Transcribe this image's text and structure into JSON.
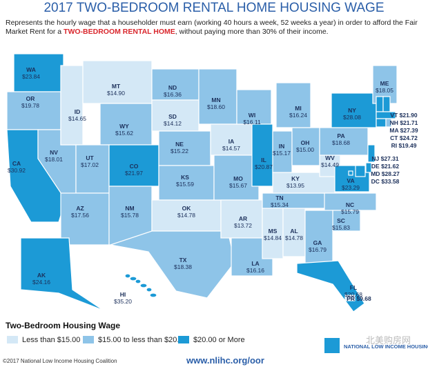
{
  "header": {
    "title": "2017 TWO-BEDROOM RENTAL HOME HOUSING WAGE",
    "subtitle": {
      "before": "Represents the hourly wage that a householder must earn (working 40 hours a week, 52 weeks a year) in order to afford the Fair Market Rent for a ",
      "highlight": "TWO-BEDROOM RENTAL HOME",
      "after": ", without paying more than 30% of their income."
    }
  },
  "legend": {
    "title": "Two-Bedroom Housing Wage",
    "items": [
      {
        "label": "Less than $15.00",
        "color": "#d4e8f6"
      },
      {
        "label": "$15.00 to less than $20.00",
        "color": "#8ec4e8"
      },
      {
        "label": "$20.00 or More",
        "color": "#1c9ad6"
      }
    ]
  },
  "states": [
    {
      "abbr": "WA",
      "wage": "$23.84",
      "tier": 2
    },
    {
      "abbr": "OR",
      "wage": "$19.78",
      "tier": 1
    },
    {
      "abbr": "CA",
      "wage": "$30.92",
      "tier": 2
    },
    {
      "abbr": "NV",
      "wage": "$18.01",
      "tier": 1
    },
    {
      "abbr": "ID",
      "wage": "$14.65",
      "tier": 0
    },
    {
      "abbr": "MT",
      "wage": "$14.90",
      "tier": 0
    },
    {
      "abbr": "WY",
      "wage": "$15.62",
      "tier": 1
    },
    {
      "abbr": "UT",
      "wage": "$17.02",
      "tier": 1
    },
    {
      "abbr": "AZ",
      "wage": "$17.56",
      "tier": 1
    },
    {
      "abbr": "CO",
      "wage": "$21.97",
      "tier": 2
    },
    {
      "abbr": "NM",
      "wage": "$15.78",
      "tier": 1
    },
    {
      "abbr": "ND",
      "wage": "$16.36",
      "tier": 1
    },
    {
      "abbr": "SD",
      "wage": "$14.12",
      "tier": 0
    },
    {
      "abbr": "NE",
      "wage": "$15.22",
      "tier": 1
    },
    {
      "abbr": "KS",
      "wage": "$15.59",
      "tier": 1
    },
    {
      "abbr": "OK",
      "wage": "$14.78",
      "tier": 0
    },
    {
      "abbr": "TX",
      "wage": "$18.38",
      "tier": 1
    },
    {
      "abbr": "MN",
      "wage": "$18.60",
      "tier": 1
    },
    {
      "abbr": "IA",
      "wage": "$14.57",
      "tier": 0
    },
    {
      "abbr": "MO",
      "wage": "$15.67",
      "tier": 1
    },
    {
      "abbr": "AR",
      "wage": "$13.72",
      "tier": 0
    },
    {
      "abbr": "LA",
      "wage": "$16.16",
      "tier": 1
    },
    {
      "abbr": "WI",
      "wage": "$16.11",
      "tier": 1
    },
    {
      "abbr": "IL",
      "wage": "$20.87",
      "tier": 2
    },
    {
      "abbr": "MS",
      "wage": "$14.84",
      "tier": 0
    },
    {
      "abbr": "AL",
      "wage": "$14.78",
      "tier": 0
    },
    {
      "abbr": "TN",
      "wage": "$15.34",
      "tier": 1
    },
    {
      "abbr": "KY",
      "wage": "$13.95",
      "tier": 0
    },
    {
      "abbr": "IN",
      "wage": "$15.17",
      "tier": 1
    },
    {
      "abbr": "OH",
      "wage": "$15.00",
      "tier": 1
    },
    {
      "abbr": "MI",
      "wage": "$16.24",
      "tier": 1
    },
    {
      "abbr": "WV",
      "wage": "$14.49",
      "tier": 0
    },
    {
      "abbr": "VA",
      "wage": "$23.29",
      "tier": 2
    },
    {
      "abbr": "NC",
      "wage": "$15.79",
      "tier": 1
    },
    {
      "abbr": "SC",
      "wage": "$15.83",
      "tier": 1
    },
    {
      "abbr": "GA",
      "wage": "$16.79",
      "tier": 1
    },
    {
      "abbr": "FL",
      "wage": "$20.68",
      "tier": 2
    },
    {
      "abbr": "PA",
      "wage": "$18.68",
      "tier": 1
    },
    {
      "abbr": "NY",
      "wage": "$28.08",
      "tier": 2
    },
    {
      "abbr": "ME",
      "wage": "$18.05",
      "tier": 1
    },
    {
      "abbr": "VT",
      "wage": "$21.90",
      "tier": 2
    },
    {
      "abbr": "NH",
      "wage": "$21.71",
      "tier": 2
    },
    {
      "abbr": "MA",
      "wage": "$27.39",
      "tier": 2
    },
    {
      "abbr": "CT",
      "wage": "$24.72",
      "tier": 2
    },
    {
      "abbr": "RI",
      "wage": "$19.49",
      "tier": 1
    },
    {
      "abbr": "NJ",
      "wage": "$27.31",
      "tier": 2
    },
    {
      "abbr": "DE",
      "wage": "$21.62",
      "tier": 2
    },
    {
      "abbr": "MD",
      "wage": "$28.27",
      "tier": 2
    },
    {
      "abbr": "DC",
      "wage": "$33.58",
      "tier": 2
    },
    {
      "abbr": "AK",
      "wage": "$24.16",
      "tier": 2
    },
    {
      "abbr": "HI",
      "wage": "$35.20",
      "tier": 2
    },
    {
      "abbr": "PR",
      "wage": "$9.68",
      "tier": 0
    }
  ],
  "footer": {
    "copyright": "©2017 National Low Income Housing Coalition",
    "url": "www.nlihc.org/oor",
    "logo": "NATIONAL LOW INCOME HOUSING COALITION",
    "watermark": "北美购房网"
  }
}
